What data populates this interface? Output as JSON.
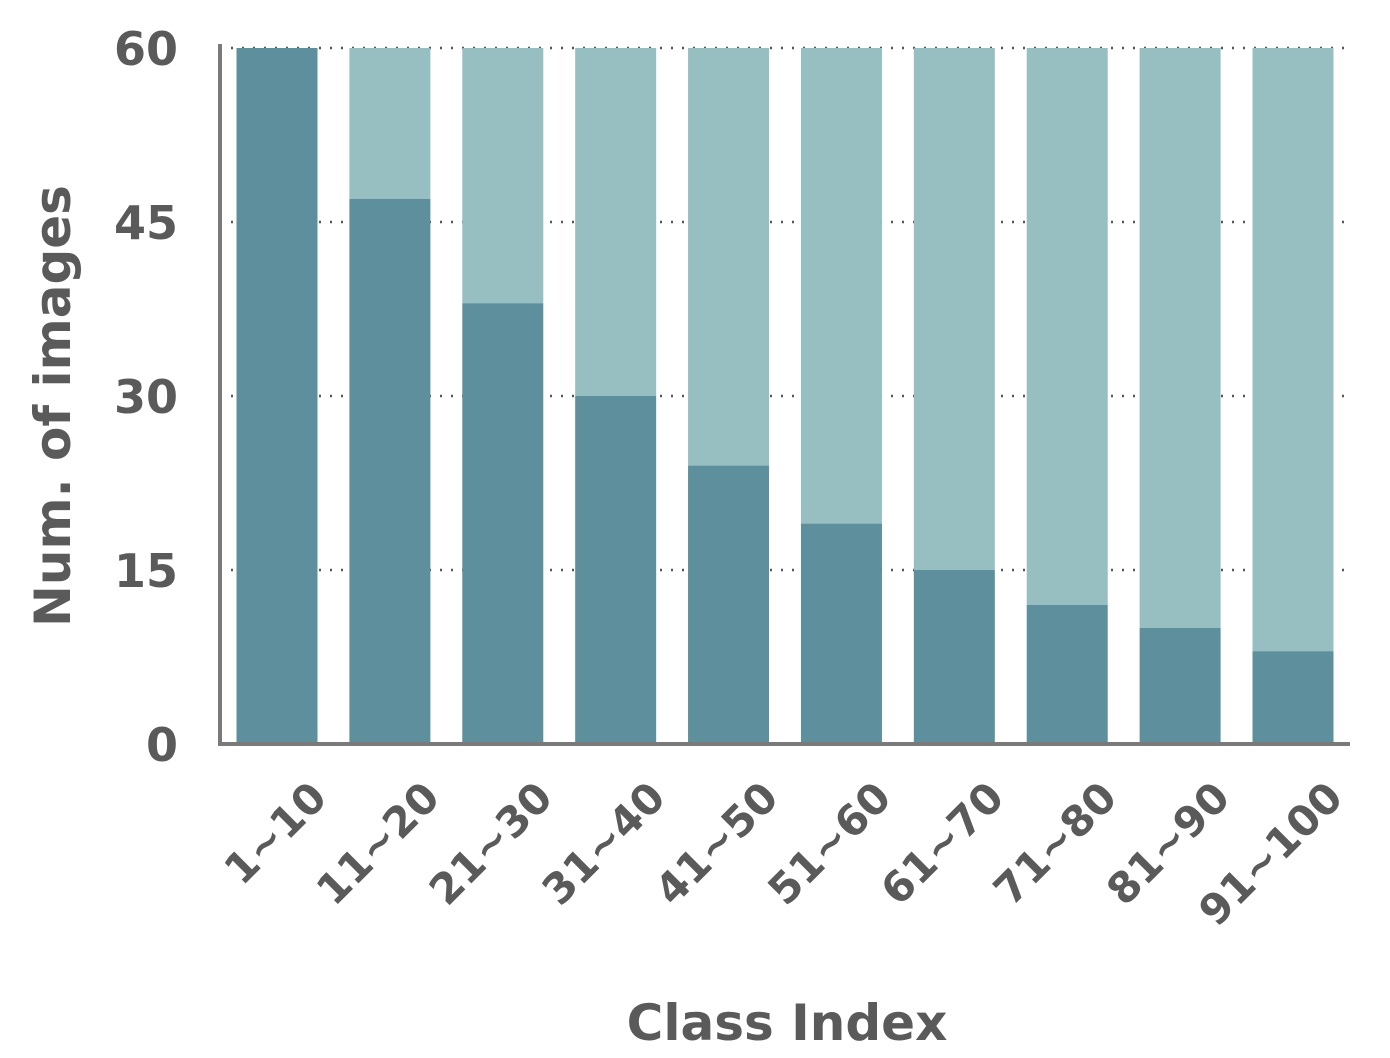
{
  "chart_data": {
    "type": "bar",
    "xlabel": "Class Index",
    "ylabel": "Num. of images",
    "ylim": [
      0,
      60
    ],
    "yticks": [
      0,
      15,
      30,
      45,
      60
    ],
    "grid": "horizontal dotted",
    "categories": [
      "1~10",
      "11~20",
      "21~30",
      "31~40",
      "41~50",
      "51~60",
      "61~70",
      "71~80",
      "81~90",
      "91~100"
    ],
    "series": [
      {
        "values": [
          60,
          47,
          38,
          30,
          24,
          19,
          15,
          12,
          10,
          8
        ]
      },
      {
        "values": [
          0,
          13,
          22,
          30,
          36,
          41,
          45,
          48,
          50,
          52
        ]
      }
    ]
  },
  "colors": {
    "dark_bar": "#5e8f9c",
    "light_bar": "#97bfc2",
    "axis": "#7a7a7a",
    "text": "#5a5a5a",
    "grid": "#555555"
  }
}
